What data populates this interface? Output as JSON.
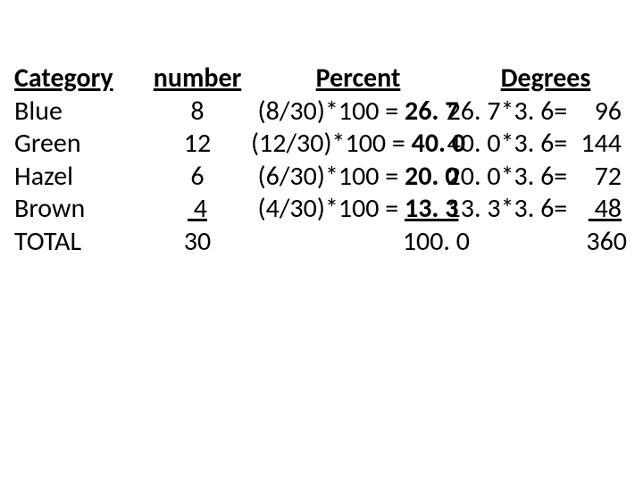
{
  "table": {
    "type": "table",
    "text_color": "#000000",
    "background_color": "#ffffff",
    "fontsize": 30,
    "columns": {
      "category": "Category",
      "number": "number",
      "percent": "Percent",
      "degrees": "Degrees"
    },
    "rows": [
      {
        "category": "Blue",
        "number": "8",
        "percent_expr": "(8/30)*100 = ",
        "percent_val": "26. 7",
        "degree_expr": "26. 7*3. 6= ",
        "degree_val": "96",
        "percent_bold": true,
        "number_underline": false,
        "percent_underline": false,
        "degree_underline": false
      },
      {
        "category": "Green",
        "number": "12",
        "percent_expr": "(12/30)*100 = ",
        "percent_val": "40. 0",
        "degree_expr": "40. 0*3. 6= ",
        "degree_val": "144",
        "percent_bold": true,
        "number_underline": false,
        "percent_underline": false,
        "degree_underline": false
      },
      {
        "category": "Hazel",
        "number": "6",
        "percent_expr": "(6/30)*100 = ",
        "percent_val": "20. 0",
        "degree_expr": "20. 0*3. 6= ",
        "degree_val": "72",
        "percent_bold": true,
        "number_underline": false,
        "percent_underline": false,
        "degree_underline": false
      },
      {
        "category": "Brown",
        "number": "4",
        "percent_expr": "(4/30)*100 = ",
        "percent_val": "13. 3",
        "degree_expr": "13. 3*3. 6= ",
        "degree_val": "48",
        "percent_bold": true,
        "number_underline": true,
        "percent_underline": true,
        "degree_underline": true
      }
    ],
    "total": {
      "category": "TOTAL",
      "number": "30",
      "percent_total": "100. 0",
      "degree_total": "360"
    }
  }
}
